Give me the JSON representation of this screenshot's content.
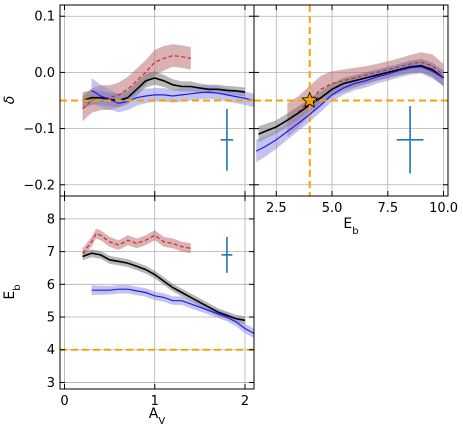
{
  "chart_data": [
    {
      "id": "top-left",
      "type": "line",
      "xlim": [
        -0.05,
        2.1
      ],
      "ylim": [
        -0.22,
        0.12
      ],
      "xticks": [
        0,
        1,
        2
      ],
      "yticks": [
        -0.2,
        -0.1,
        0.0,
        0.1
      ],
      "ytick_labels": [
        "−0.2",
        "−0.1",
        "0.0",
        "0.1"
      ],
      "ylabel": "δ",
      "xlabel": "",
      "grid": true,
      "hline": {
        "y": -0.05,
        "color": "#f5a30a"
      },
      "errorbar": {
        "x": 1.8,
        "y": -0.12,
        "xerr": 0.07,
        "yerr": 0.055,
        "color": "#1f77b4"
      },
      "series": [
        {
          "style": "red-dashed",
          "color": "#d62728",
          "band_color": "#b5666a",
          "x": [
            0.2,
            0.3,
            0.4,
            0.5,
            0.6,
            0.7,
            0.8,
            0.9,
            1.0,
            1.1,
            1.2,
            1.3,
            1.4
          ],
          "y": [
            -0.065,
            -0.05,
            -0.045,
            -0.045,
            -0.04,
            -0.03,
            -0.015,
            -0.0,
            0.018,
            0.025,
            0.03,
            0.028,
            0.025
          ],
          "band": [
            0.022,
            0.022,
            0.022,
            0.022,
            0.022,
            0.022,
            0.022,
            0.022,
            0.022,
            0.022,
            0.02,
            0.02,
            0.02
          ]
        },
        {
          "style": "black-solid",
          "color": "#000000",
          "band_color": "#707070",
          "x": [
            0.2,
            0.3,
            0.4,
            0.5,
            0.6,
            0.7,
            0.8,
            0.9,
            1.0,
            1.1,
            1.2,
            1.3,
            1.4,
            1.5,
            1.6,
            1.7,
            1.8,
            1.9,
            2.0
          ],
          "y": [
            -0.05,
            -0.045,
            -0.045,
            -0.048,
            -0.05,
            -0.045,
            -0.03,
            -0.015,
            -0.01,
            -0.015,
            -0.022,
            -0.025,
            -0.025,
            -0.028,
            -0.03,
            -0.03,
            -0.032,
            -0.033,
            -0.035
          ],
          "band": [
            0.015,
            0.013,
            0.012,
            0.012,
            0.012,
            0.012,
            0.012,
            0.012,
            0.012,
            0.011,
            0.01,
            0.009,
            0.009,
            0.008,
            0.008,
            0.008,
            0.008,
            0.008,
            0.008
          ]
        },
        {
          "style": "blue-solid",
          "color": "#1a1aff",
          "band_color": "#8a8ad8",
          "x": [
            0.3,
            0.4,
            0.5,
            0.6,
            0.7,
            0.8,
            0.9,
            1.0,
            1.1,
            1.2,
            1.3,
            1.4,
            1.5,
            1.6,
            1.7,
            1.8,
            1.9,
            2.0,
            2.1
          ],
          "y": [
            -0.032,
            -0.042,
            -0.048,
            -0.055,
            -0.052,
            -0.045,
            -0.042,
            -0.04,
            -0.04,
            -0.042,
            -0.04,
            -0.038,
            -0.036,
            -0.035,
            -0.037,
            -0.04,
            -0.043,
            -0.046,
            -0.05
          ],
          "band": [
            0.022,
            0.02,
            0.018,
            0.016,
            0.015,
            0.014,
            0.013,
            0.012,
            0.012,
            0.012,
            0.012,
            0.012,
            0.012,
            0.012,
            0.012,
            0.012,
            0.012,
            0.012,
            0.012
          ]
        }
      ]
    },
    {
      "id": "top-right",
      "type": "line",
      "xlim": [
        1.5,
        10.2
      ],
      "ylim": [
        -0.22,
        0.12
      ],
      "xticks": [
        2.5,
        5.0,
        7.5,
        10.0
      ],
      "xtick_labels": [
        "2.5",
        "5.0",
        "7.5",
        "10.0"
      ],
      "yticks": [
        -0.2,
        -0.1,
        0.0,
        0.1
      ],
      "xlabel": "E_b",
      "ylabel": "",
      "grid": true,
      "hline": {
        "y": -0.05,
        "color": "#f5a30a"
      },
      "vline": {
        "x": 4.0,
        "color": "#f5a30a"
      },
      "star": {
        "x": 4.0,
        "y": -0.05,
        "color": "#f5a30a"
      },
      "errorbar": {
        "x": 8.5,
        "y": -0.12,
        "xerr": 0.6,
        "yerr": 0.06,
        "color": "#1f77b4"
      },
      "series": [
        {
          "style": "red-dashed",
          "color": "#d62728",
          "band_color": "#b5666a",
          "x": [
            3.0,
            3.5,
            4.0,
            4.5,
            5.0,
            5.5,
            6.0,
            6.5,
            7.0,
            7.5,
            8.0,
            8.5,
            9.0,
            9.5,
            10.0
          ],
          "y": [
            -0.085,
            -0.07,
            -0.05,
            -0.03,
            -0.02,
            -0.015,
            -0.01,
            -0.005,
            0.0,
            0.005,
            0.01,
            0.015,
            0.018,
            0.012,
            -0.005
          ],
          "band": [
            0.03,
            0.028,
            0.026,
            0.024,
            0.022,
            0.02,
            0.018,
            0.016,
            0.015,
            0.015,
            0.015,
            0.016,
            0.018,
            0.02,
            0.02
          ]
        },
        {
          "style": "black-solid",
          "color": "#000000",
          "band_color": "#707070",
          "x": [
            1.7,
            2.0,
            2.5,
            3.0,
            3.5,
            4.0,
            4.5,
            5.0,
            5.5,
            6.0,
            6.5,
            7.0,
            7.5,
            8.0,
            8.5,
            9.0,
            9.5,
            10.0
          ],
          "y": [
            -0.11,
            -0.105,
            -0.097,
            -0.085,
            -0.072,
            -0.058,
            -0.045,
            -0.03,
            -0.02,
            -0.015,
            -0.01,
            -0.005,
            0.0,
            0.005,
            0.01,
            0.012,
            0.005,
            -0.01
          ],
          "band": [
            0.014,
            0.013,
            0.012,
            0.012,
            0.012,
            0.011,
            0.011,
            0.01,
            0.01,
            0.01,
            0.01,
            0.01,
            0.01,
            0.01,
            0.011,
            0.012,
            0.012,
            0.014
          ]
        },
        {
          "style": "blue-solid",
          "color": "#1a1aff",
          "band_color": "#8a8ad8",
          "x": [
            1.6,
            2.0,
            2.5,
            3.0,
            3.5,
            4.0,
            4.5,
            5.0,
            5.5,
            6.0,
            6.5,
            7.0,
            7.5,
            8.0,
            8.5,
            9.0,
            9.5,
            10.0
          ],
          "y": [
            -0.14,
            -0.132,
            -0.12,
            -0.105,
            -0.09,
            -0.075,
            -0.058,
            -0.04,
            -0.028,
            -0.02,
            -0.015,
            -0.008,
            -0.003,
            0.003,
            0.008,
            0.01,
            0.002,
            -0.01
          ],
          "band": [
            0.02,
            0.018,
            0.016,
            0.015,
            0.014,
            0.013,
            0.012,
            0.012,
            0.012,
            0.012,
            0.012,
            0.012,
            0.012,
            0.012,
            0.012,
            0.012,
            0.013,
            0.014
          ]
        }
      ]
    },
    {
      "id": "bottom-left",
      "type": "line",
      "xlim": [
        -0.05,
        2.1
      ],
      "ylim": [
        2.8,
        8.7
      ],
      "xticks": [
        0,
        1,
        2
      ],
      "yticks": [
        3,
        4,
        5,
        6,
        7,
        8
      ],
      "xlabel": "A_V",
      "ylabel": "E_b",
      "grid": true,
      "hline": {
        "y": 4.0,
        "color": "#f5a30a"
      },
      "errorbar": {
        "x": 1.8,
        "y": 6.9,
        "xerr": 0.06,
        "yerr": 0.55,
        "color": "#1f77b4"
      },
      "series": [
        {
          "style": "red-dashed",
          "color": "#d62728",
          "band_color": "#b5666a",
          "x": [
            0.2,
            0.3,
            0.35,
            0.4,
            0.5,
            0.6,
            0.7,
            0.8,
            0.9,
            1.0,
            1.1,
            1.2,
            1.3,
            1.4
          ],
          "y": [
            6.95,
            7.3,
            7.55,
            7.5,
            7.3,
            7.2,
            7.35,
            7.25,
            7.35,
            7.5,
            7.3,
            7.25,
            7.15,
            7.1
          ],
          "band": [
            0.15,
            0.15,
            0.15,
            0.15,
            0.15,
            0.15,
            0.15,
            0.15,
            0.15,
            0.15,
            0.15,
            0.15,
            0.15,
            0.15
          ]
        },
        {
          "style": "black-solid",
          "color": "#000000",
          "band_color": "#707070",
          "x": [
            0.2,
            0.3,
            0.4,
            0.5,
            0.6,
            0.7,
            0.8,
            0.9,
            1.0,
            1.1,
            1.2,
            1.3,
            1.4,
            1.5,
            1.6,
            1.7,
            1.8,
            1.9,
            2.0
          ],
          "y": [
            6.85,
            6.95,
            6.9,
            6.75,
            6.7,
            6.65,
            6.55,
            6.45,
            6.3,
            6.1,
            5.9,
            5.75,
            5.6,
            5.45,
            5.3,
            5.15,
            5.05,
            4.95,
            4.9
          ],
          "band": [
            0.12,
            0.12,
            0.12,
            0.12,
            0.12,
            0.12,
            0.12,
            0.12,
            0.12,
            0.12,
            0.12,
            0.12,
            0.12,
            0.12,
            0.12,
            0.12,
            0.12,
            0.12,
            0.12
          ]
        },
        {
          "style": "blue-solid",
          "color": "#1a1aff",
          "band_color": "#8a8ad8",
          "x": [
            0.3,
            0.4,
            0.5,
            0.6,
            0.7,
            0.8,
            0.9,
            1.0,
            1.1,
            1.2,
            1.3,
            1.4,
            1.5,
            1.6,
            1.7,
            1.8,
            1.9,
            2.0,
            2.1
          ],
          "y": [
            5.82,
            5.82,
            5.82,
            5.85,
            5.85,
            5.8,
            5.75,
            5.65,
            5.6,
            5.5,
            5.5,
            5.4,
            5.3,
            5.2,
            5.1,
            5.0,
            4.85,
            4.65,
            4.5
          ],
          "band": [
            0.15,
            0.14,
            0.13,
            0.13,
            0.13,
            0.13,
            0.13,
            0.13,
            0.13,
            0.13,
            0.13,
            0.13,
            0.13,
            0.13,
            0.13,
            0.13,
            0.13,
            0.14,
            0.15
          ]
        }
      ]
    }
  ]
}
